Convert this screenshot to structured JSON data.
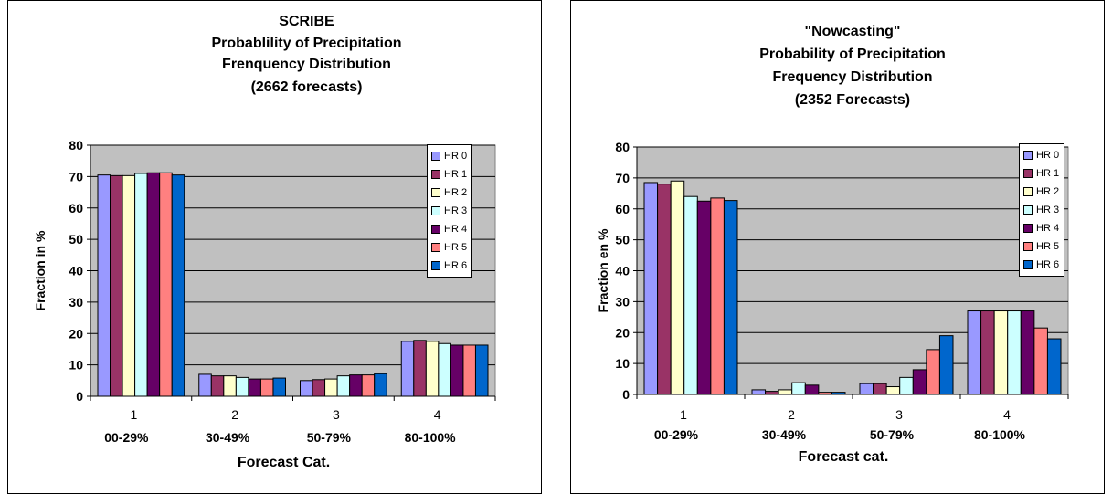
{
  "chart_data": [
    {
      "type": "bar",
      "title": [
        "SCRIBE",
        "Probablility of Precipitation",
        "Frenquency Distribution",
        "(2662 forecasts)"
      ],
      "xlabel": "Forecast Cat.",
      "ylabel": "Fraction in %",
      "ylim": [
        0,
        80
      ],
      "yticks": [
        0,
        10,
        20,
        30,
        40,
        50,
        60,
        70,
        80
      ],
      "categories": [
        "1",
        "2",
        "3",
        "4"
      ],
      "category_sublabels": [
        "00-29%",
        "30-49%",
        "50-79%",
        "80-100%"
      ],
      "grid": true,
      "legend": "top-right",
      "series": [
        {
          "name": "HR 0",
          "values": [
            70.5,
            7.0,
            5.0,
            17.5
          ]
        },
        {
          "name": "HR 1",
          "values": [
            70.3,
            6.5,
            5.3,
            17.8
          ]
        },
        {
          "name": "HR 2",
          "values": [
            70.3,
            6.5,
            5.5,
            17.5
          ]
        },
        {
          "name": "HR 3",
          "values": [
            71.0,
            6.0,
            6.5,
            16.8
          ]
        },
        {
          "name": "HR 4",
          "values": [
            71.2,
            5.5,
            6.8,
            16.3
          ]
        },
        {
          "name": "HR 5",
          "values": [
            71.2,
            5.5,
            6.8,
            16.3
          ]
        },
        {
          "name": "HR 6",
          "values": [
            70.5,
            5.8,
            7.2,
            16.3
          ]
        }
      ]
    },
    {
      "type": "bar",
      "title": [
        "\"Nowcasting\"",
        "Probability of Precipitation",
        "Frequency Distribution",
        "(2352 Forecasts)"
      ],
      "xlabel": "Forecast cat.",
      "ylabel": "Fraction en %",
      "ylim": [
        0,
        80
      ],
      "yticks": [
        0,
        10,
        20,
        30,
        40,
        50,
        60,
        70,
        80
      ],
      "categories": [
        "1",
        "2",
        "3",
        "4"
      ],
      "category_sublabels": [
        "00-29%",
        "30-49%",
        "50-79%",
        "80-100%"
      ],
      "grid": true,
      "legend": "top-right",
      "series": [
        {
          "name": "HR 0",
          "values": [
            68.5,
            1.5,
            3.5,
            27.0
          ]
        },
        {
          "name": "HR 1",
          "values": [
            68.0,
            1.0,
            3.5,
            27.0
          ]
        },
        {
          "name": "HR 2",
          "values": [
            69.0,
            1.5,
            2.5,
            27.0
          ]
        },
        {
          "name": "HR 3",
          "values": [
            64.0,
            3.8,
            5.5,
            27.0
          ]
        },
        {
          "name": "HR 4",
          "values": [
            62.5,
            3.0,
            8.0,
            27.0
          ]
        },
        {
          "name": "HR 5",
          "values": [
            63.5,
            0.7,
            14.5,
            21.5
          ]
        },
        {
          "name": "HR 6",
          "values": [
            62.7,
            0.7,
            19.0,
            18.0
          ]
        }
      ]
    }
  ],
  "colors": {
    "series": [
      "#9999ff",
      "#993366",
      "#ffffcc",
      "#ccffff",
      "#660066",
      "#ff8080",
      "#0066cc"
    ],
    "plot_background": "#c0c0c0",
    "gridline": "#000000"
  }
}
